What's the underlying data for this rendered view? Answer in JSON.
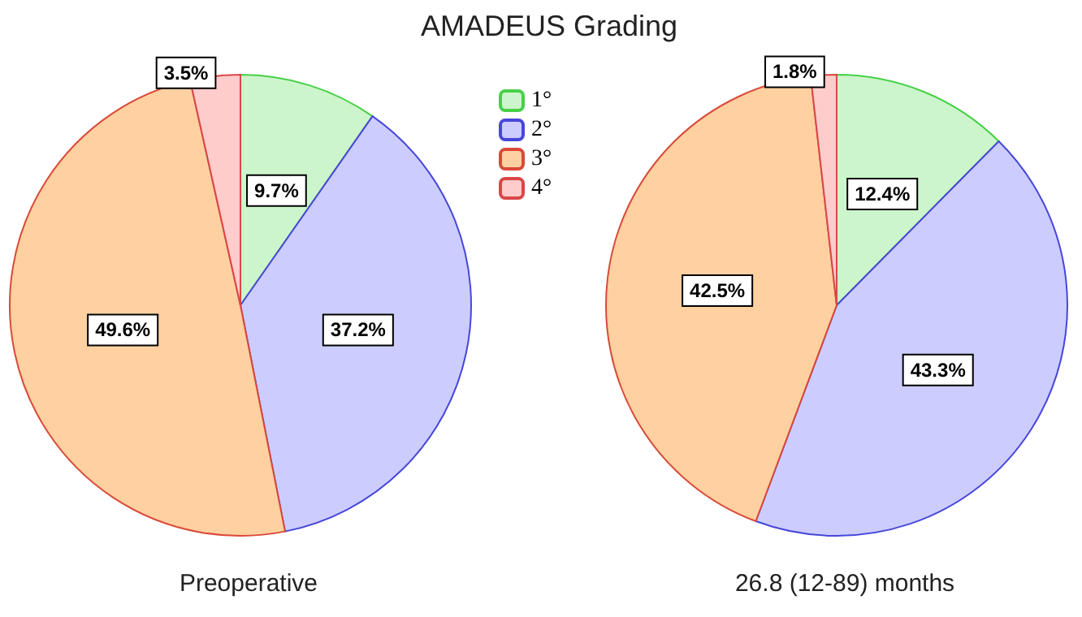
{
  "chart_data": [
    {
      "type": "pie",
      "title": "AMADEUS Grading",
      "xlabel": "Preoperative",
      "legend": "right",
      "categories": [
        "1°",
        "2°",
        "3°",
        "4°"
      ],
      "values": [
        9.7,
        37.2,
        49.6,
        3.5
      ],
      "value_labels": [
        "9.7%",
        "37.2%",
        "49.6%",
        "3.5%"
      ],
      "colors": [
        "#ccf5cc",
        "#ccccff",
        "#ffd0a0",
        "#ffcccc"
      ]
    },
    {
      "type": "pie",
      "xlabel": "26.8 (12-89) months",
      "categories": [
        null,
        null,
        null,
        null
      ],
      "values": [
        12.4,
        43.3,
        42.5,
        1.8
      ],
      "value_labels": [
        "12.4%",
        "43.3%",
        "42.5%",
        "1.8%"
      ],
      "colors": [
        "#ccf5cc",
        "#ccccff",
        "#ffd0a0",
        "#ffcccc"
      ]
    }
  ]
}
